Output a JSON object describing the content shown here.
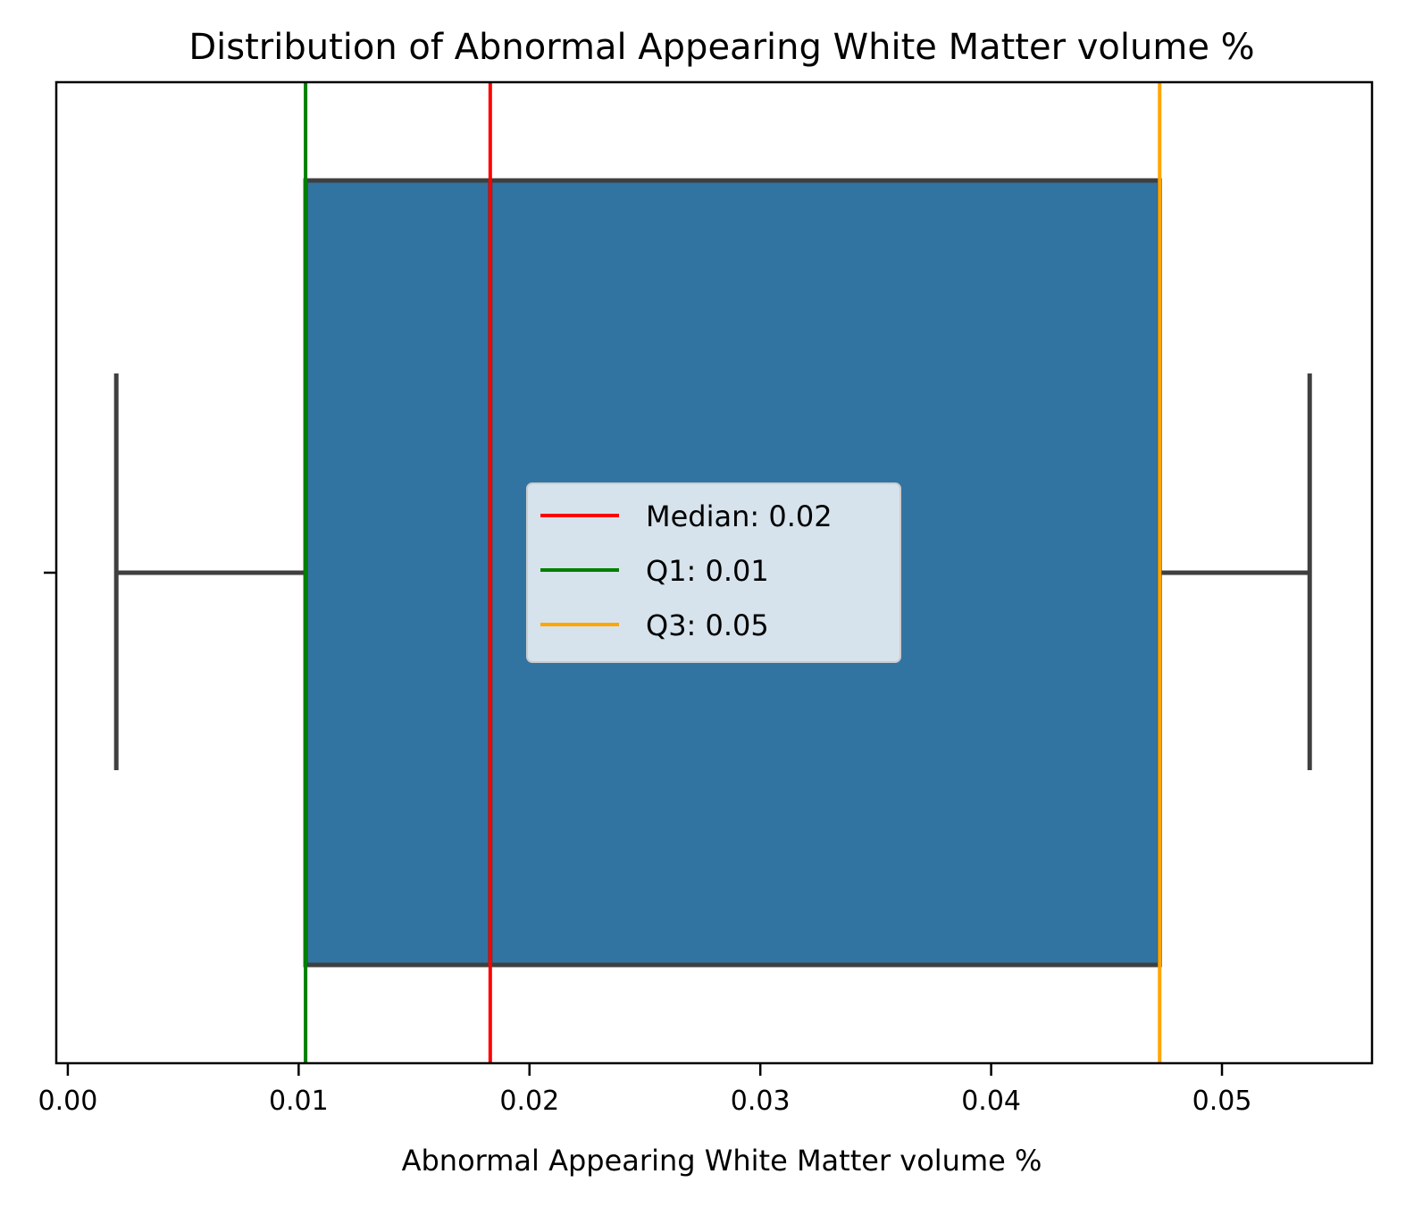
{
  "chart_data": {
    "type": "box",
    "title": "Distribution of Abnormal Appearing White Matter volume %",
    "xlabel": "Abnormal Appearing White Matter volume %",
    "ylabel": "",
    "xlim": [
      -0.0005,
      0.0565
    ],
    "x_ticks": [
      0.0,
      0.01,
      0.02,
      0.03,
      0.04,
      0.05
    ],
    "x_tick_labels": [
      "0.00",
      "0.01",
      "0.02",
      "0.03",
      "0.04",
      "0.05"
    ],
    "box": {
      "whisker_low": 0.0021,
      "q1": 0.0103,
      "median": 0.0183,
      "q3": 0.0473,
      "whisker_high": 0.0538,
      "fill_color": "#3274a1",
      "line_color": "#3f3f3f"
    },
    "reference_lines": [
      {
        "name": "Median: 0.02",
        "x": 0.0183,
        "color": "#ff0000"
      },
      {
        "name": "Q1: 0.01",
        "x": 0.0103,
        "color": "#008000"
      },
      {
        "name": "Q3: 0.05",
        "x": 0.0473,
        "color": "#ffa500"
      }
    ],
    "legend": {
      "location": "center"
    },
    "grid": false
  }
}
